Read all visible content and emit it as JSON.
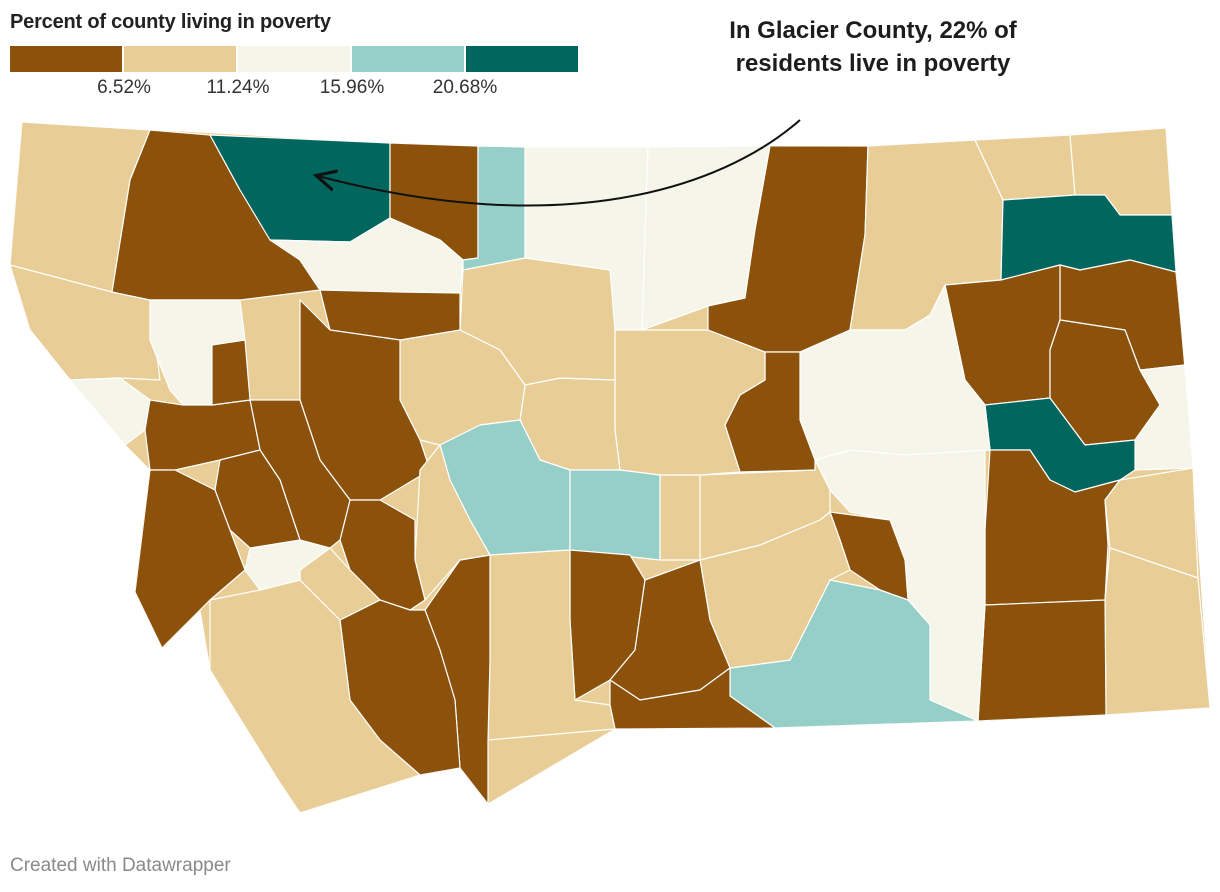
{
  "legend": {
    "title": "Percent of county living in poverty",
    "colors": [
      "#8c510a",
      "#e8cd96",
      "#f5f5ea",
      "#96cec8",
      "#01665e"
    ],
    "thresholds": [
      "6.52%",
      "11.24%",
      "15.96%",
      "20.68%"
    ]
  },
  "annotation": {
    "text": "In Glacier County, 22% of residents live in poverty"
  },
  "credit": "Created with Datawrapper",
  "map": {
    "state_color": "#e8cd96",
    "bins": [
      "#8c510a",
      "#e8cd96",
      "#f5f5ea",
      "#96cec8",
      "#01665e"
    ]
  }
}
